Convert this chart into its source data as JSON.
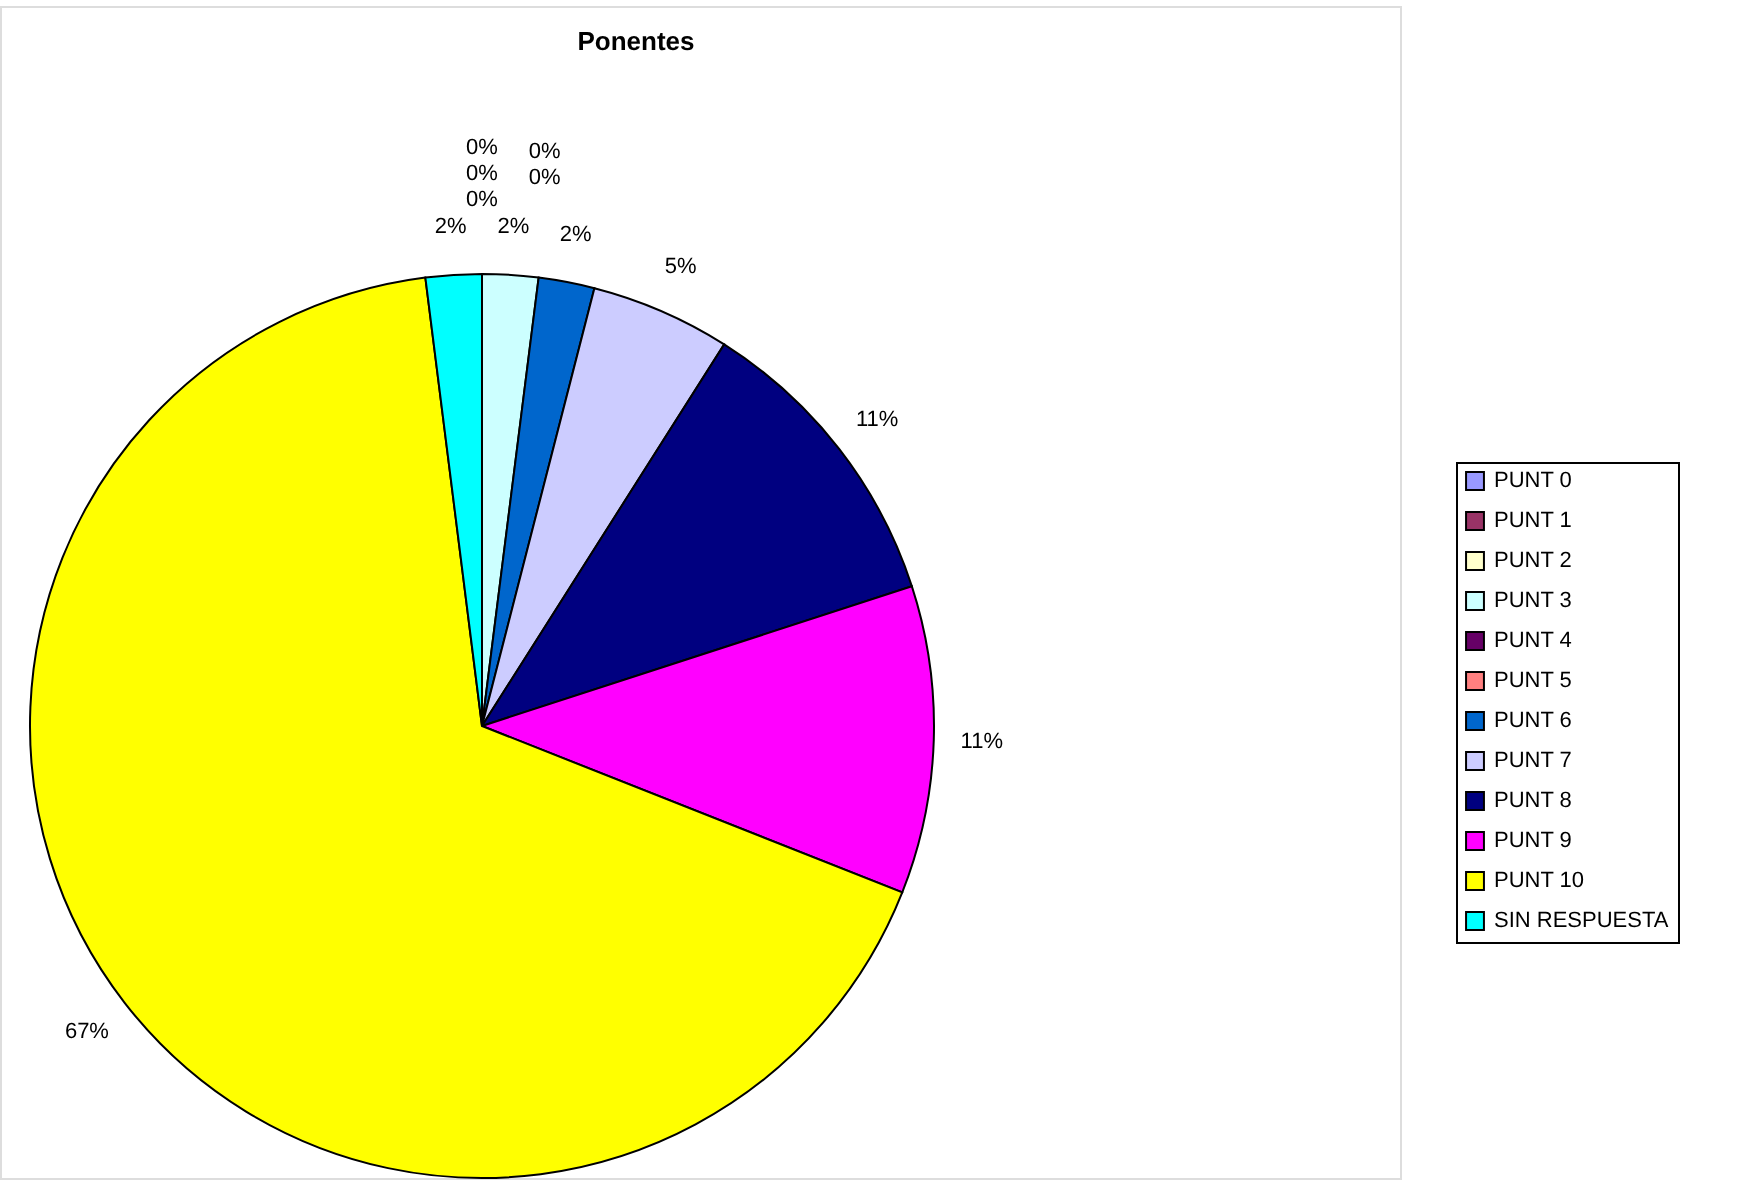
{
  "chart_data": {
    "type": "pie",
    "title": "Ponentes",
    "categories": [
      "PUNT 0",
      "PUNT 1",
      "PUNT 2",
      "PUNT 3",
      "PUNT 4",
      "PUNT 5",
      "PUNT 6",
      "PUNT 7",
      "PUNT 8",
      "PUNT 9",
      "PUNT 10",
      "SIN RESPUESTA"
    ],
    "values": [
      0,
      0,
      0,
      2,
      0,
      0,
      2,
      5,
      11,
      11,
      67,
      2
    ],
    "value_labels": [
      "0%",
      "0%",
      "0%",
      "2%",
      "0%",
      "0%",
      "2%",
      "5%",
      "11%",
      "11%",
      "67%",
      "2%"
    ],
    "colors": [
      "#9999ff",
      "#993366",
      "#ffffcc",
      "#ccffff",
      "#660066",
      "#ff8080",
      "#0066cc",
      "#ccccff",
      "#000080",
      "#ff00ff",
      "#ffff00",
      "#00ffff"
    ],
    "legend": "right"
  }
}
